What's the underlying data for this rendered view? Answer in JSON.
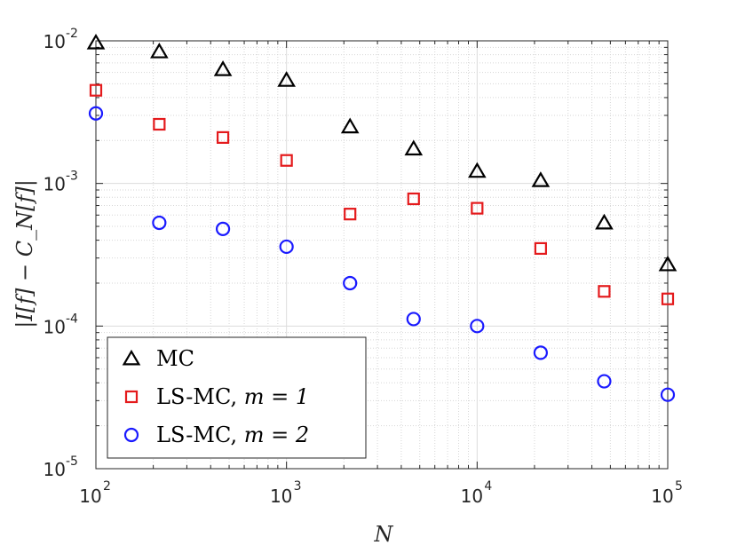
{
  "chart_data": {
    "type": "scatter",
    "x_scale": "log",
    "y_scale": "log",
    "xlabel": "N",
    "ylabel": "|I[f] − C_N[f]|",
    "xlim": [
      100,
      100000
    ],
    "ylim": [
      1e-05,
      0.01
    ],
    "grid": true,
    "minor_grid": true,
    "legend_position": "bottom-left",
    "x_ticks": [
      {
        "value": 100,
        "base": "10",
        "exp": "2"
      },
      {
        "value": 1000,
        "base": "10",
        "exp": "3"
      },
      {
        "value": 10000,
        "base": "10",
        "exp": "4"
      },
      {
        "value": 100000,
        "base": "10",
        "exp": "5"
      }
    ],
    "y_ticks": [
      {
        "value": 1e-05,
        "base": "10",
        "exp": "-5"
      },
      {
        "value": 0.0001,
        "base": "10",
        "exp": "-4"
      },
      {
        "value": 0.001,
        "base": "10",
        "exp": "-3"
      },
      {
        "value": 0.01,
        "base": "10",
        "exp": "-2"
      }
    ],
    "x": [
      100,
      215,
      464,
      1000,
      2154,
      4642,
      10000,
      21544,
      46416,
      100000
    ],
    "series": [
      {
        "name": "MC",
        "name_text": "MC",
        "name_math": "",
        "marker": "triangle",
        "color": "#000000",
        "values": [
          0.0097,
          0.0084,
          0.0063,
          0.0053,
          0.0025,
          0.00175,
          0.00122,
          0.00105,
          0.00053,
          0.00027
        ]
      },
      {
        "name": "LS-MC, m = 1",
        "name_text": "LS-MC, ",
        "name_math": "m = 1",
        "marker": "square",
        "color": "#e41a1c",
        "values": [
          0.0045,
          0.0026,
          0.0021,
          0.00145,
          0.00061,
          0.00078,
          0.00067,
          0.00035,
          0.000175,
          0.000155
        ]
      },
      {
        "name": "LS-MC, m = 2",
        "name_text": "LS-MC, ",
        "name_math": "m = 2",
        "marker": "circle",
        "color": "#1a1aff",
        "values": [
          0.0031,
          0.00053,
          0.00048,
          0.00036,
          0.0002,
          0.000112,
          0.0001,
          6.5e-05,
          4.1e-05,
          3.3e-05
        ]
      }
    ]
  }
}
